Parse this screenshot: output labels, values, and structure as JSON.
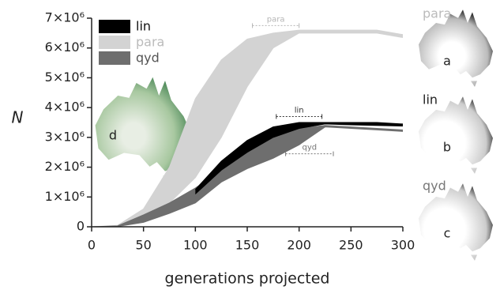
{
  "chart_data": {
    "type": "band",
    "x_label": "generations projected",
    "y_label": "N",
    "x": [
      0,
      25,
      50,
      75,
      100,
      125,
      150,
      175,
      200,
      225,
      250,
      275,
      300
    ],
    "series": [
      {
        "name": "lin",
        "color": "#000000",
        "high": [
          null,
          null,
          null,
          null,
          1250000.0,
          2200000.0,
          2900000.0,
          3350000.0,
          3500000.0,
          3500000.0,
          3500000.0,
          3500000.0,
          3450000.0
        ],
        "low": [
          null,
          null,
          null,
          null,
          1100000.0,
          1900000.0,
          2500000.0,
          3000000.0,
          3300000.0,
          3450000.0,
          3420000.0,
          3400000.0,
          3380000.0
        ]
      },
      {
        "name": "para",
        "color": "#d3d3d3",
        "high": [
          0,
          50000.0,
          600000.0,
          2000000.0,
          4300000.0,
          5600000.0,
          6300000.0,
          6500000.0,
          6600000.0,
          6600000.0,
          6600000.0,
          6600000.0,
          6450000.0
        ],
        "low": [
          0,
          20000.0,
          300000.0,
          800000.0,
          1650000.0,
          3000000.0,
          4700000.0,
          6000000.0,
          6500000.0,
          6500000.0,
          6500000.0,
          6500000.0,
          6350000.0
        ]
      },
      {
        "name": "qyd",
        "color": "#6e6e6e",
        "high": [
          0,
          30000.0,
          400000.0,
          800000.0,
          1300000.0,
          1900000.0,
          2500000.0,
          3000000.0,
          3300000.0,
          3400000.0,
          3350000.0,
          3300000.0,
          3250000.0
        ],
        "low": [
          0,
          10000.0,
          150000.0,
          450000.0,
          800000.0,
          1500000.0,
          1950000.0,
          2300000.0,
          2750000.0,
          3350000.0,
          3300000.0,
          3250000.0,
          3200000.0
        ]
      }
    ],
    "annotations": [
      {
        "text": "para",
        "x": [
          155,
          200
        ],
        "y": 6750000.0,
        "color": "#b5b5b5"
      },
      {
        "text": "lin",
        "x": [
          178,
          222
        ],
        "y": 3700000.0,
        "color": "#333333"
      },
      {
        "text": "qyd",
        "x": [
          187,
          233
        ],
        "y": 2450000.0,
        "color": "#777777"
      }
    ],
    "xlim": [
      0,
      300
    ],
    "xticks": [
      0,
      50,
      100,
      150,
      200,
      250,
      300
    ],
    "ylim": [
      0,
      7000000
    ],
    "yticks": [
      0,
      {
        "value": 1000000,
        "label": "1×10⁶"
      },
      {
        "value": 2000000,
        "label": "2×10⁶"
      },
      {
        "value": 3000000,
        "label": "3×10⁶"
      },
      {
        "value": 4000000,
        "label": "4×10⁶"
      },
      {
        "value": 5000000,
        "label": "5×10⁶"
      },
      {
        "value": 6000000,
        "label": "6×10⁶"
      },
      {
        "value": 7000000,
        "label": "7×10⁶"
      }
    ],
    "legend": "top-left"
  },
  "map_panels": [
    {
      "title": "para",
      "letter": "a"
    },
    {
      "title": "lin",
      "letter": "b"
    },
    {
      "title": "qyd",
      "letter": "c"
    }
  ],
  "inset_letter": "d"
}
